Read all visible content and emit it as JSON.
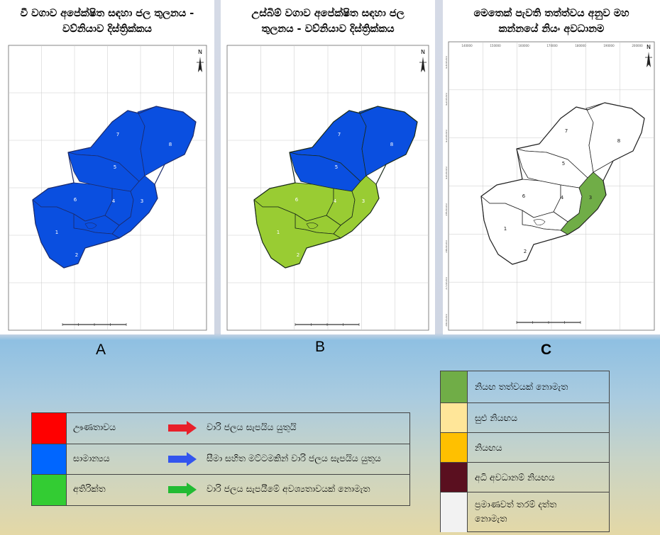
{
  "panels": [
    {
      "id": "A",
      "title": "වී වගාව අපේක්ෂිත සඳහා ජල තුලනය -\nවව්නියාව දිස්ත්‍රික්කය",
      "letter": "A",
      "north": "N"
    },
    {
      "id": "B",
      "title": "උස්බිම් වගාව  අපේක්ෂිත සඳහා ජල\nතුලනය - වව්නියාව දිස්ත්‍රික්කය",
      "letter": "B",
      "north": "N"
    },
    {
      "id": "C",
      "title": "මෙතෙක් පැවති තත්ත්වය අනුව මහ\nකන්නයේ නියං අවධානම",
      "letter": "C",
      "north": "N",
      "x_ticks": [
        "140000",
        "150000",
        "160000",
        "170000",
        "180000",
        "190000",
        "200000"
      ],
      "y_ticks": [
        "4300000",
        "4200000",
        "4100000",
        "4000000",
        "3900000",
        "3800000",
        "3700000",
        "3600000"
      ]
    }
  ],
  "district_labels": [
    "1",
    "2",
    "3",
    "4",
    "5",
    "6",
    "7",
    "8"
  ],
  "colors": {
    "deficit": "#ff0000",
    "normal": "#0066ff",
    "surplus": "#33cc33",
    "map_blue": "#0a4fe0",
    "map_green": "#99cc33",
    "risk_none": "#70ad47",
    "risk_low": "#ffe699",
    "risk_mid": "#ffc000",
    "risk_high": "#5a0f1f",
    "risk_nodata": "#f2f2f2"
  },
  "legend_left": [
    {
      "label": "ඌණතාවය",
      "action": "වාරි ජලය සැපයිය යුතුයි",
      "swatch": "#ff0000",
      "arrow": "#e8202a"
    },
    {
      "label": "සාමාන්‍යය",
      "action": "සීමා සහිත මට්ටමකින් වාරි ජලය සැපයිය යුතුය",
      "swatch": "#0066ff",
      "arrow": "#3355ee"
    },
    {
      "label": "අතිරික්ත",
      "action": "වාරි ජලය සැපයීමේ අවශ්‍යතාවයක් නොමැත",
      "swatch": "#33cc33",
      "arrow": "#22bb33"
    }
  ],
  "legend_right": [
    {
      "label": "නියඟ තත්වයක් නොමැත",
      "swatch": "#70ad47"
    },
    {
      "label": "සුළු නියඟය",
      "swatch": "#ffe699"
    },
    {
      "label": "නියඟය",
      "swatch": "#ffc000"
    },
    {
      "label": "අධි අවධානම් නියඟය",
      "swatch": "#5a0f1f"
    },
    {
      "label": "ප්‍රමාණවත් තරම් දත්ත\nනොමැත",
      "swatch": "#f2f2f2"
    }
  ]
}
